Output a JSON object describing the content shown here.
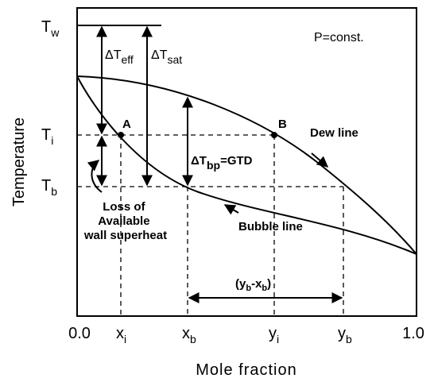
{
  "title": "P=const.",
  "y_axis": {
    "title": "Temperature",
    "labels": [
      {
        "text": "T",
        "sub": "w"
      },
      {
        "text": "T",
        "sub": "i"
      },
      {
        "text": "T",
        "sub": "b"
      }
    ]
  },
  "x_axis": {
    "title": "Mole fraction",
    "start": "0.0",
    "end": "1.0",
    "labels": [
      {
        "text": "x",
        "sub": "i"
      },
      {
        "text": "x",
        "sub": "b"
      },
      {
        "text": "y",
        "sub": "i"
      },
      {
        "text": "y",
        "sub": "b"
      }
    ]
  },
  "points": [
    "A",
    "B"
  ],
  "curves": {
    "dew": "Dew line",
    "bubble": "Bubble line"
  },
  "annotations": {
    "dt_eff": {
      "text": "ΔT",
      "sub": "eff"
    },
    "dt_sat": {
      "text": "ΔT",
      "sub": "sat"
    },
    "dt_bp": {
      "text": "ΔT",
      "sub": "bp",
      "rest": "=GTD"
    },
    "loss": [
      "Loss of",
      "Available",
      "wall superheat"
    ],
    "width": {
      "open": "(y",
      "sub1": "b",
      "mid": "-x",
      "sub2": "b",
      "close": ")"
    }
  }
}
